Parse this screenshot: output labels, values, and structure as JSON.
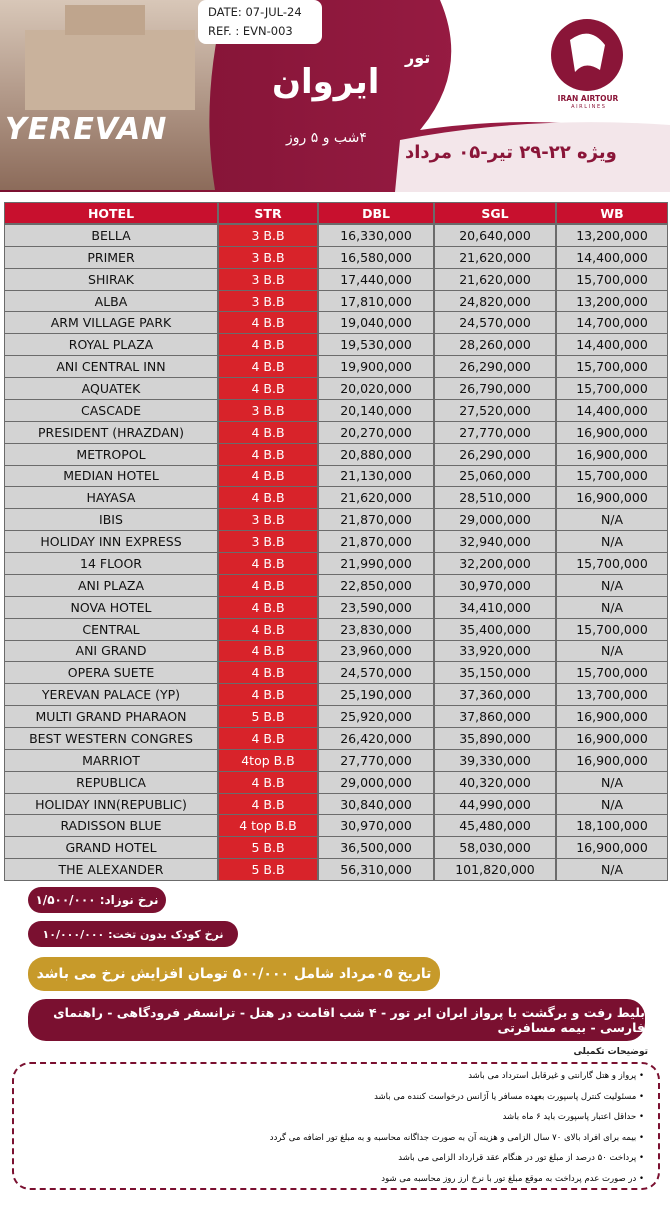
{
  "header": {
    "date": "DATE: 07-JUL-24",
    "ref": "REF. : EVN-003",
    "city_photo_text": "YEREVAN",
    "title_small": "تور",
    "title": "ایروان",
    "duration": "۴شب و ۵ روز",
    "dates": "ویژه ۲۲-۲۹ تیر-۰۵ مرداد",
    "logo": "IRAN AIRTOUR",
    "logo_sub": "A I R L I N E S"
  },
  "table": {
    "header": [
      "HOTEL",
      "STR",
      "DBL",
      "SGL",
      "WB"
    ],
    "rows": [
      [
        "BELLA",
        "3 B.B",
        "16,330,000",
        "20,640,000",
        "13,200,000"
      ],
      [
        "PRIMER",
        "3 B.B",
        "16,580,000",
        "21,620,000",
        "14,400,000"
      ],
      [
        "SHIRAK",
        "3 B.B",
        "17,440,000",
        "21,620,000",
        "15,700,000"
      ],
      [
        "ALBA",
        "3 B.B",
        "17,810,000",
        "24,820,000",
        "13,200,000"
      ],
      [
        "ARM VILLAGE PARK",
        "4 B.B",
        "19,040,000",
        "24,570,000",
        "14,700,000"
      ],
      [
        "ROYAL PLAZA",
        "4 B.B",
        "19,530,000",
        "28,260,000",
        "14,400,000"
      ],
      [
        "ANI CENTRAL INN",
        "4 B.B",
        "19,900,000",
        "26,290,000",
        "15,700,000"
      ],
      [
        "AQUATEK",
        "4 B.B",
        "20,020,000",
        "26,790,000",
        "15,700,000"
      ],
      [
        "CASCADE",
        "3 B.B",
        "20,140,000",
        "27,520,000",
        "14,400,000"
      ],
      [
        "PRESIDENT (HRAZDAN)",
        "4 B.B",
        "20,270,000",
        "27,770,000",
        "16,900,000"
      ],
      [
        "METROPOL",
        "4 B.B",
        "20,880,000",
        "26,290,000",
        "16,900,000"
      ],
      [
        "MEDIAN HOTEL",
        "4 B.B",
        "21,130,000",
        "25,060,000",
        "15,700,000"
      ],
      [
        "HAYASA",
        "4 B.B",
        "21,620,000",
        "28,510,000",
        "16,900,000"
      ],
      [
        "IBIS",
        "3 B.B",
        "21,870,000",
        "29,000,000",
        "N/A"
      ],
      [
        "HOLIDAY INN EXPRESS",
        "3 B.B",
        "21,870,000",
        "32,940,000",
        "N/A"
      ],
      [
        "14 FLOOR",
        "4 B.B",
        "21,990,000",
        "32,200,000",
        "15,700,000"
      ],
      [
        "ANI PLAZA",
        "4 B.B",
        "22,850,000",
        "30,970,000",
        "N/A"
      ],
      [
        "NOVA HOTEL",
        "4 B.B",
        "23,590,000",
        "34,410,000",
        "N/A"
      ],
      [
        "CENTRAL",
        "4 B.B",
        "23,830,000",
        "35,400,000",
        "15,700,000"
      ],
      [
        "ANI GRAND",
        "4 B.B",
        "23,960,000",
        "33,920,000",
        "N/A"
      ],
      [
        "OPERA SUETE",
        "4 B.B",
        "24,570,000",
        "35,150,000",
        "15,700,000"
      ],
      [
        "YEREVAN PALACE (YP)",
        "4 B.B",
        "25,190,000",
        "37,360,000",
        "13,700,000"
      ],
      [
        "MULTI GRAND PHARAON",
        "5 B.B",
        "25,920,000",
        "37,860,000",
        "16,900,000"
      ],
      [
        "BEST WESTERN CONGRES",
        "4 B.B",
        "26,420,000",
        "35,890,000",
        "16,900,000"
      ],
      [
        "MARRIOT",
        "4top  B.B",
        "27,770,000",
        "39,330,000",
        "16,900,000"
      ],
      [
        "REPUBLICA",
        "4 B.B",
        "29,000,000",
        "40,320,000",
        "N/A"
      ],
      [
        "HOLIDAY INN(REPUBLIC)",
        "4 B.B",
        "30,840,000",
        "44,990,000",
        "N/A"
      ],
      [
        "RADISSON BLUE",
        "4 top B.B",
        "30,970,000",
        "45,480,000",
        "18,100,000"
      ],
      [
        "GRAND HOTEL",
        "5 B.B",
        "36,500,000",
        "58,030,000",
        "16,900,000"
      ],
      [
        "THE ALEXANDER",
        "5 B.B",
        "56,310,000",
        "101,820,000",
        "N/A"
      ]
    ]
  },
  "footer": {
    "infant": "نرخ نوزاد: ۱/۵۰۰/۰۰۰",
    "child": "نرخ کودک بدون تخت: ۱۰/۰۰۰/۰۰۰",
    "notice": "تاریخ ۰۵مرداد شامل ۵۰۰/۰۰۰ تومان افزایش نرخ می باشد",
    "includes": "بلیط رفت و برگشت با پرواز ایران ایر تور - ۴ شب اقامت در هتل - ترانسفر فرودگاهی - راهنمای فارسی - بیمه مسافرتی",
    "notes_title": "توضیحات تکمیلی",
    "notes": [
      "پرواز و هتل گارانتی و غیرقابل استرداد می باشد",
      "مسئولیت کنترل پاسپورت بعهده مسافر یا آژانس درخواست کننده می باشد",
      "حداقل اعتبار پاسپورت باید ۶ ماه باشد",
      "بیمه برای افراد بالای ۷۰ سال الزامی و هزینه آن به صورت جداگانه محاسبه و به مبلغ تور اضافه می گردد",
      "پرداخت ۵۰ درصد از مبلغ تور در هنگام عقد قرارداد الزامی می باشد",
      "در صورت عدم پرداخت به موقع مبلغ تور با نرخ ارز روز محاسبه می شود"
    ]
  }
}
